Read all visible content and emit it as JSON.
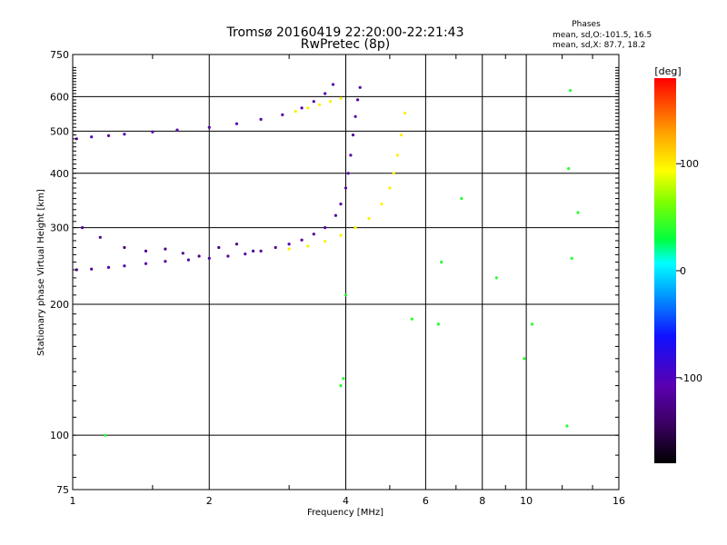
{
  "chart_data": {
    "type": "scatter",
    "title": "Tromsø 20160419 22:20:00-22:21:43",
    "subtitle": "RwPretec (8p)",
    "phase_title": "Phases",
    "phase_stats": [
      "mean, sd,O:-101.5, 16.5",
      "mean, sd,X:  87.7, 18.2"
    ],
    "xlabel": "Frequency [MHz]",
    "ylabel": "Stationary phase Virtual Height [km]",
    "x_scale": "log",
    "y_scale": "log",
    "xlim": [
      1,
      16
    ],
    "ylim": [
      75,
      750
    ],
    "x_ticks": [
      1,
      2,
      4,
      6,
      8,
      10,
      16
    ],
    "x_tick_labels": [
      "1",
      "2",
      "4",
      "6",
      "8",
      "10",
      "16"
    ],
    "y_ticks": [
      75,
      100,
      200,
      300,
      400,
      500,
      600,
      750
    ],
    "y_tick_labels": [
      "75",
      "100",
      "200",
      "300",
      "400",
      "500",
      "600",
      "750"
    ],
    "grid": true,
    "colorbar": {
      "label": "[deg]",
      "min": -180,
      "max": 180,
      "ticks": [
        100,
        0,
        -100
      ],
      "tick_labels": [
        "100",
        "0",
        "-100"
      ]
    },
    "series": [
      {
        "trace": "F1-O",
        "phase": -115,
        "x": [
          1.02,
          1.1,
          1.2,
          1.3,
          1.45,
          1.6,
          1.8,
          2.0,
          2.2,
          2.4,
          2.6,
          2.8,
          3.0,
          3.2,
          3.4,
          3.6,
          3.8,
          3.9,
          4.0,
          4.05,
          4.1,
          4.15,
          4.2,
          4.25,
          4.3
        ],
        "y": [
          240,
          241,
          243,
          245,
          248,
          251,
          253,
          255,
          258,
          261,
          265,
          270,
          275,
          281,
          290,
          300,
          320,
          340,
          370,
          400,
          440,
          490,
          540,
          590,
          630
        ]
      },
      {
        "trace": "F1-X",
        "phase": 100,
        "x": [
          3.0,
          3.3,
          3.6,
          3.9,
          4.2,
          4.5,
          4.8,
          5.0,
          5.1,
          5.2,
          5.3,
          5.4
        ],
        "y": [
          268,
          272,
          279,
          288,
          300,
          315,
          340,
          370,
          400,
          440,
          490,
          550
        ]
      },
      {
        "trace": "F2-O",
        "phase": -110,
        "x": [
          1.02,
          1.1,
          1.2,
          1.3,
          1.5,
          1.7,
          2.0,
          2.3,
          2.6,
          2.9,
          3.2,
          3.4,
          3.6,
          3.75
        ],
        "y": [
          480,
          485,
          488,
          492,
          498,
          503,
          510,
          520,
          532,
          545,
          565,
          585,
          610,
          640
        ]
      },
      {
        "trace": "F2-X",
        "phase": 100,
        "x": [
          3.1,
          3.3,
          3.5,
          3.7,
          3.9
        ],
        "y": [
          555,
          565,
          575,
          585,
          595
        ]
      },
      {
        "trace": "spread-low",
        "phase": -125,
        "x": [
          1.05,
          1.15,
          1.3,
          1.45,
          1.6,
          1.75,
          1.9,
          2.1,
          2.3,
          2.5
        ],
        "y": [
          300,
          285,
          270,
          265,
          268,
          262,
          258,
          270,
          275,
          265
        ]
      },
      {
        "trace": "scattered",
        "phase": 40,
        "x": [
          1.18,
          3.9,
          3.95,
          4.0,
          5.6,
          6.4,
          6.5,
          7.2,
          8.6,
          9.9,
          10.3,
          12.3,
          12.4,
          12.5,
          12.6,
          13.0
        ],
        "y": [
          100,
          130,
          135,
          210,
          185,
          180,
          250,
          350,
          230,
          150,
          180,
          105,
          410,
          620,
          255,
          325
        ]
      }
    ]
  }
}
